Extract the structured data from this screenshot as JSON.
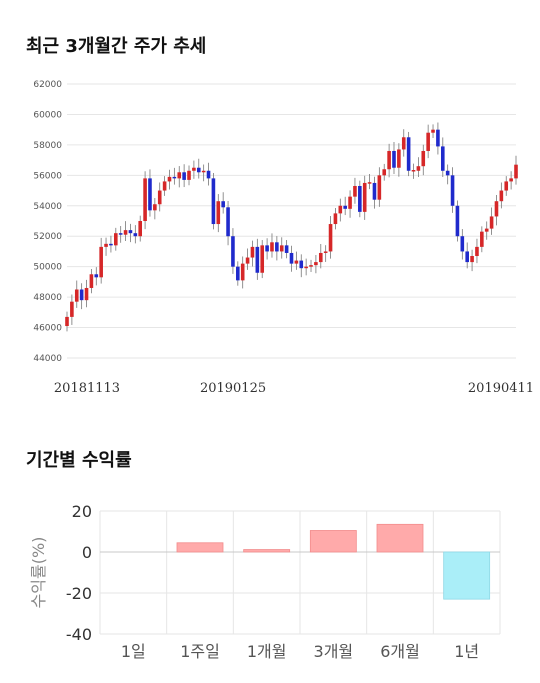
{
  "candle_chart": {
    "title": "최근 3개월간 주가 추세",
    "chart_data": {
      "type": "candlestick",
      "ylim": [
        44000,
        62000
      ],
      "yticks": [
        44000,
        46000,
        48000,
        50000,
        52000,
        54000,
        56000,
        58000,
        60000,
        62000
      ],
      "x_labels": [
        "20181113",
        "20190125",
        "20190411"
      ],
      "grid": true,
      "colors": {
        "up": "#d62728",
        "down": "#1f2acc"
      },
      "closes": [
        46700,
        47700,
        48500,
        47800,
        48600,
        49500,
        49300,
        51300,
        51500,
        51400,
        52200,
        52100,
        52400,
        52200,
        52000,
        53000,
        55800,
        53700,
        54100,
        55000,
        55600,
        55900,
        55800,
        56200,
        55700,
        56300,
        56500,
        56200,
        56300,
        55800,
        52800,
        54300,
        53900,
        52000,
        50000,
        49100,
        50200,
        50600,
        51300,
        49600,
        51400,
        51000,
        51600,
        51000,
        51400,
        50900,
        50200,
        50400,
        49900,
        50000,
        50100,
        50300,
        50900,
        51000,
        52800,
        53500,
        54000,
        53800,
        54600,
        55300,
        53600,
        55500,
        55500,
        54400,
        56000,
        56400,
        57600,
        56500,
        57700,
        58500,
        56300,
        56300,
        56600,
        57600,
        58800,
        59000,
        57900,
        56300,
        56000,
        54000,
        52000,
        51000,
        50300,
        50700,
        51300,
        52300,
        52500,
        53300,
        54300,
        55000,
        55600,
        55800,
        56700
      ]
    }
  },
  "returns_chart": {
    "title": "기간별 수익률",
    "chart_data": {
      "type": "bar",
      "categories": [
        "1일",
        "1주일",
        "1개월",
        "3개월",
        "6개월",
        "1년"
      ],
      "values": [
        0,
        4.5,
        1.2,
        10.5,
        13.5,
        -23
      ],
      "ylabel": "수익률(%)",
      "ylim": [
        -40,
        20
      ],
      "yticks": [
        20,
        0,
        -20,
        -40
      ],
      "grid": true,
      "colors": {
        "positive": "#ffaaaa",
        "negative": "#aaeef8"
      }
    }
  }
}
